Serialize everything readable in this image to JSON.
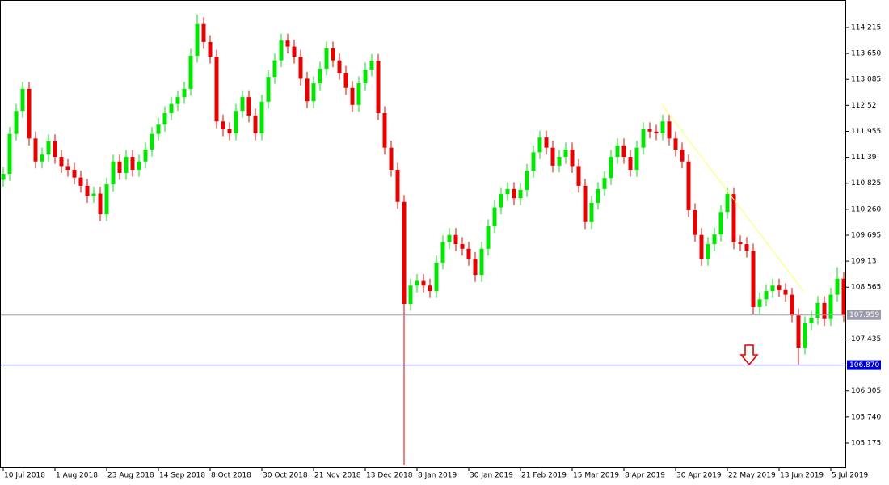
{
  "chart_data": {
    "type": "candlestick",
    "categories": [
      "10 Jul 2018",
      null,
      null,
      null,
      null,
      null,
      null,
      null,
      "1 Aug 2018",
      null,
      null,
      null,
      null,
      null,
      null,
      null,
      "23 Aug 2018",
      null,
      null,
      null,
      null,
      null,
      null,
      null,
      "14 Sep 2018",
      null,
      null,
      null,
      null,
      null,
      null,
      null,
      "8 Oct 2018",
      null,
      null,
      null,
      null,
      null,
      null,
      null,
      "30 Oct 2018",
      null,
      null,
      null,
      null,
      null,
      null,
      null,
      "21 Nov 2018",
      null,
      null,
      null,
      null,
      null,
      null,
      null,
      "13 Dec 2018",
      null,
      null,
      null,
      null,
      null,
      null,
      null,
      "8 Jan 2019",
      null,
      null,
      null,
      null,
      null,
      null,
      null,
      "30 Jan 2019",
      null,
      null,
      null,
      null,
      null,
      null,
      null,
      "21 Feb 2019",
      null,
      null,
      null,
      null,
      null,
      null,
      null,
      "15 Mar 2019",
      null,
      null,
      null,
      null,
      null,
      null,
      null,
      "8 Apr 2019",
      null,
      null,
      null,
      null,
      null,
      null,
      null,
      "30 Apr 2019",
      null,
      null,
      null,
      null,
      null,
      null,
      null,
      "22 May 2019",
      null,
      null,
      null,
      null,
      null,
      null,
      null,
      "13 Jun 2019",
      null,
      null,
      null,
      null,
      null,
      null,
      null,
      "5 Jul 2019",
      null,
      null
    ],
    "open": [
      110.9,
      111.03,
      111.9,
      112.4,
      112.88,
      111.8,
      111.3,
      111.45,
      111.74,
      111.4,
      111.2,
      111.12,
      110.95,
      110.77,
      110.55,
      110.6,
      110.15,
      110.8,
      111.3,
      111.05,
      111.4,
      111.12,
      111.3,
      111.56,
      111.9,
      112.1,
      112.35,
      112.55,
      112.7,
      112.88,
      113.6,
      114.29,
      113.9,
      113.58,
      112.17,
      112.0,
      111.91,
      112.4,
      112.7,
      112.3,
      111.91,
      112.6,
      113.14,
      113.5,
      113.93,
      113.8,
      113.58,
      113.1,
      112.61,
      113.0,
      113.32,
      113.76,
      113.5,
      113.23,
      112.9,
      112.53,
      113.0,
      113.3,
      113.49,
      112.35,
      111.6,
      111.12,
      110.42,
      108.2,
      108.6,
      108.7,
      108.6,
      108.48,
      109.1,
      109.54,
      109.7,
      109.5,
      109.4,
      109.18,
      108.83,
      109.4,
      109.89,
      110.3,
      110.59,
      110.7,
      110.5,
      110.68,
      111.1,
      111.5,
      111.82,
      111.6,
      111.21,
      111.4,
      111.56,
      111.2,
      110.77,
      109.98,
      110.4,
      110.7,
      110.94,
      111.4,
      111.65,
      111.4,
      111.12,
      111.6,
      112.0,
      111.95,
      111.91,
      112.17,
      111.8,
      111.56,
      111.3,
      110.24,
      109.7,
      109.18,
      109.5,
      109.71,
      110.2,
      110.59,
      109.54,
      109.5,
      109.36,
      108.13,
      108.3,
      108.48,
      108.6,
      108.5,
      108.4,
      107.95,
      107.25,
      107.78,
      107.9,
      108.22,
      107.87,
      108.4,
      108.75
    ],
    "high": [
      111.18,
      112.05,
      112.55,
      113.03,
      113.03,
      111.95,
      111.6,
      111.89,
      111.89,
      111.55,
      111.35,
      111.27,
      111.1,
      110.92,
      110.75,
      110.75,
      110.95,
      111.45,
      111.45,
      111.55,
      111.55,
      111.45,
      111.71,
      112.05,
      112.25,
      112.5,
      112.7,
      112.85,
      113.03,
      113.75,
      114.5,
      114.44,
      114.05,
      113.73,
      112.32,
      112.15,
      112.55,
      112.85,
      112.85,
      112.45,
      112.75,
      113.29,
      113.65,
      114.08,
      114.08,
      113.95,
      113.73,
      113.25,
      113.15,
      113.47,
      113.91,
      113.91,
      113.65,
      113.38,
      113.05,
      113.15,
      113.45,
      113.64,
      113.64,
      112.5,
      111.75,
      111.27,
      110.57,
      108.75,
      108.85,
      108.85,
      108.75,
      109.25,
      109.69,
      109.85,
      109.85,
      109.65,
      109.55,
      109.33,
      109.55,
      110.04,
      110.45,
      110.74,
      110.85,
      110.85,
      110.83,
      111.25,
      111.65,
      111.97,
      111.97,
      111.75,
      111.55,
      111.71,
      111.71,
      111.35,
      110.92,
      110.55,
      110.85,
      111.09,
      111.55,
      111.8,
      111.8,
      111.55,
      111.75,
      112.15,
      112.15,
      112.1,
      112.32,
      112.32,
      111.95,
      111.71,
      111.45,
      110.39,
      109.85,
      109.65,
      109.86,
      110.35,
      110.74,
      110.74,
      109.69,
      109.65,
      109.51,
      108.45,
      108.63,
      108.75,
      108.75,
      108.65,
      108.55,
      108.1,
      107.93,
      108.05,
      108.37,
      108.37,
      108.55,
      109.0,
      108.9
    ],
    "low": [
      110.75,
      110.88,
      111.75,
      112.25,
      111.65,
      111.15,
      111.15,
      111.3,
      111.25,
      111.05,
      110.97,
      110.8,
      110.62,
      110.4,
      110.4,
      110.0,
      110.0,
      110.65,
      110.9,
      110.9,
      110.97,
      110.97,
      111.15,
      111.41,
      111.75,
      111.95,
      112.2,
      112.4,
      112.55,
      112.73,
      113.45,
      113.75,
      113.43,
      112.02,
      111.85,
      111.76,
      111.76,
      112.25,
      112.15,
      111.76,
      111.76,
      112.45,
      112.99,
      113.35,
      113.65,
      113.43,
      112.95,
      112.46,
      112.46,
      112.85,
      113.17,
      113.35,
      113.08,
      112.75,
      112.38,
      112.38,
      112.85,
      113.15,
      112.2,
      111.45,
      110.97,
      110.27,
      104.7,
      108.05,
      108.45,
      108.45,
      108.33,
      108.33,
      108.95,
      109.39,
      109.35,
      109.25,
      109.03,
      108.68,
      108.68,
      109.25,
      109.74,
      110.15,
      110.44,
      110.35,
      110.35,
      110.53,
      110.95,
      111.35,
      111.45,
      111.06,
      111.06,
      111.25,
      111.05,
      110.62,
      109.83,
      109.83,
      110.25,
      110.55,
      110.79,
      111.25,
      111.25,
      110.97,
      110.97,
      111.45,
      111.8,
      111.76,
      111.76,
      111.65,
      111.41,
      111.15,
      110.09,
      109.55,
      109.03,
      109.03,
      109.35,
      109.56,
      110.05,
      109.39,
      109.35,
      109.21,
      107.98,
      107.98,
      108.15,
      108.33,
      108.35,
      108.25,
      107.8,
      106.87,
      107.1,
      107.63,
      107.75,
      107.72,
      107.72,
      108.25,
      107.81
    ],
    "close": [
      111.03,
      111.9,
      112.4,
      112.88,
      111.8,
      111.3,
      111.45,
      111.74,
      111.4,
      111.2,
      111.12,
      110.95,
      110.77,
      110.55,
      110.6,
      110.15,
      110.8,
      111.3,
      111.05,
      111.4,
      111.12,
      111.3,
      111.56,
      111.9,
      112.1,
      112.35,
      112.55,
      112.7,
      112.88,
      113.6,
      114.29,
      113.9,
      113.58,
      112.17,
      112.0,
      111.91,
      112.4,
      112.7,
      112.3,
      111.91,
      112.6,
      113.14,
      113.5,
      113.93,
      113.8,
      113.58,
      113.1,
      112.61,
      113.0,
      113.32,
      113.76,
      113.5,
      113.23,
      112.9,
      112.53,
      113.0,
      113.3,
      113.49,
      112.35,
      111.6,
      111.12,
      110.42,
      108.2,
      108.6,
      108.7,
      108.6,
      108.48,
      109.1,
      109.54,
      109.7,
      109.5,
      109.4,
      109.18,
      108.83,
      109.4,
      109.89,
      110.3,
      110.59,
      110.7,
      110.5,
      110.68,
      111.1,
      111.5,
      111.82,
      111.6,
      111.21,
      111.4,
      111.56,
      111.2,
      110.77,
      109.98,
      110.4,
      110.7,
      110.94,
      111.4,
      111.65,
      111.4,
      111.12,
      111.6,
      112.0,
      111.95,
      111.91,
      112.17,
      111.8,
      111.56,
      111.3,
      110.24,
      109.7,
      109.18,
      109.5,
      109.71,
      110.2,
      110.59,
      109.54,
      109.5,
      109.36,
      108.13,
      108.3,
      108.48,
      108.6,
      108.5,
      108.4,
      107.95,
      107.25,
      107.78,
      107.9,
      108.22,
      107.87,
      108.4,
      108.75,
      107.959
    ],
    "up_color": "#00e600",
    "down_color": "#e60000",
    "ylim": [
      104.647,
      114.813
    ],
    "yticks": [
      114.215,
      {
        "value": 113.65,
        "label": "113.650"
      },
      113.085,
      112.52,
      111.955,
      111.39,
      110.825,
      {
        "value": 110.26,
        "label": "110.260"
      },
      109.695,
      109.13,
      108.565,
      107.435,
      106.305,
      {
        "value": 105.74,
        "label": "105.740"
      },
      105.175
    ],
    "hlines": [
      {
        "value": 107.959,
        "label": "107.959",
        "color": "#9a9aaa"
      },
      {
        "value": 106.87,
        "label": "106.870",
        "color": "#0000cc"
      }
    ],
    "trendline": {
      "x": [
        101.9,
        123.75
      ],
      "y": [
        112.53,
        108.48
      ],
      "color": "#ffff66"
    }
  }
}
